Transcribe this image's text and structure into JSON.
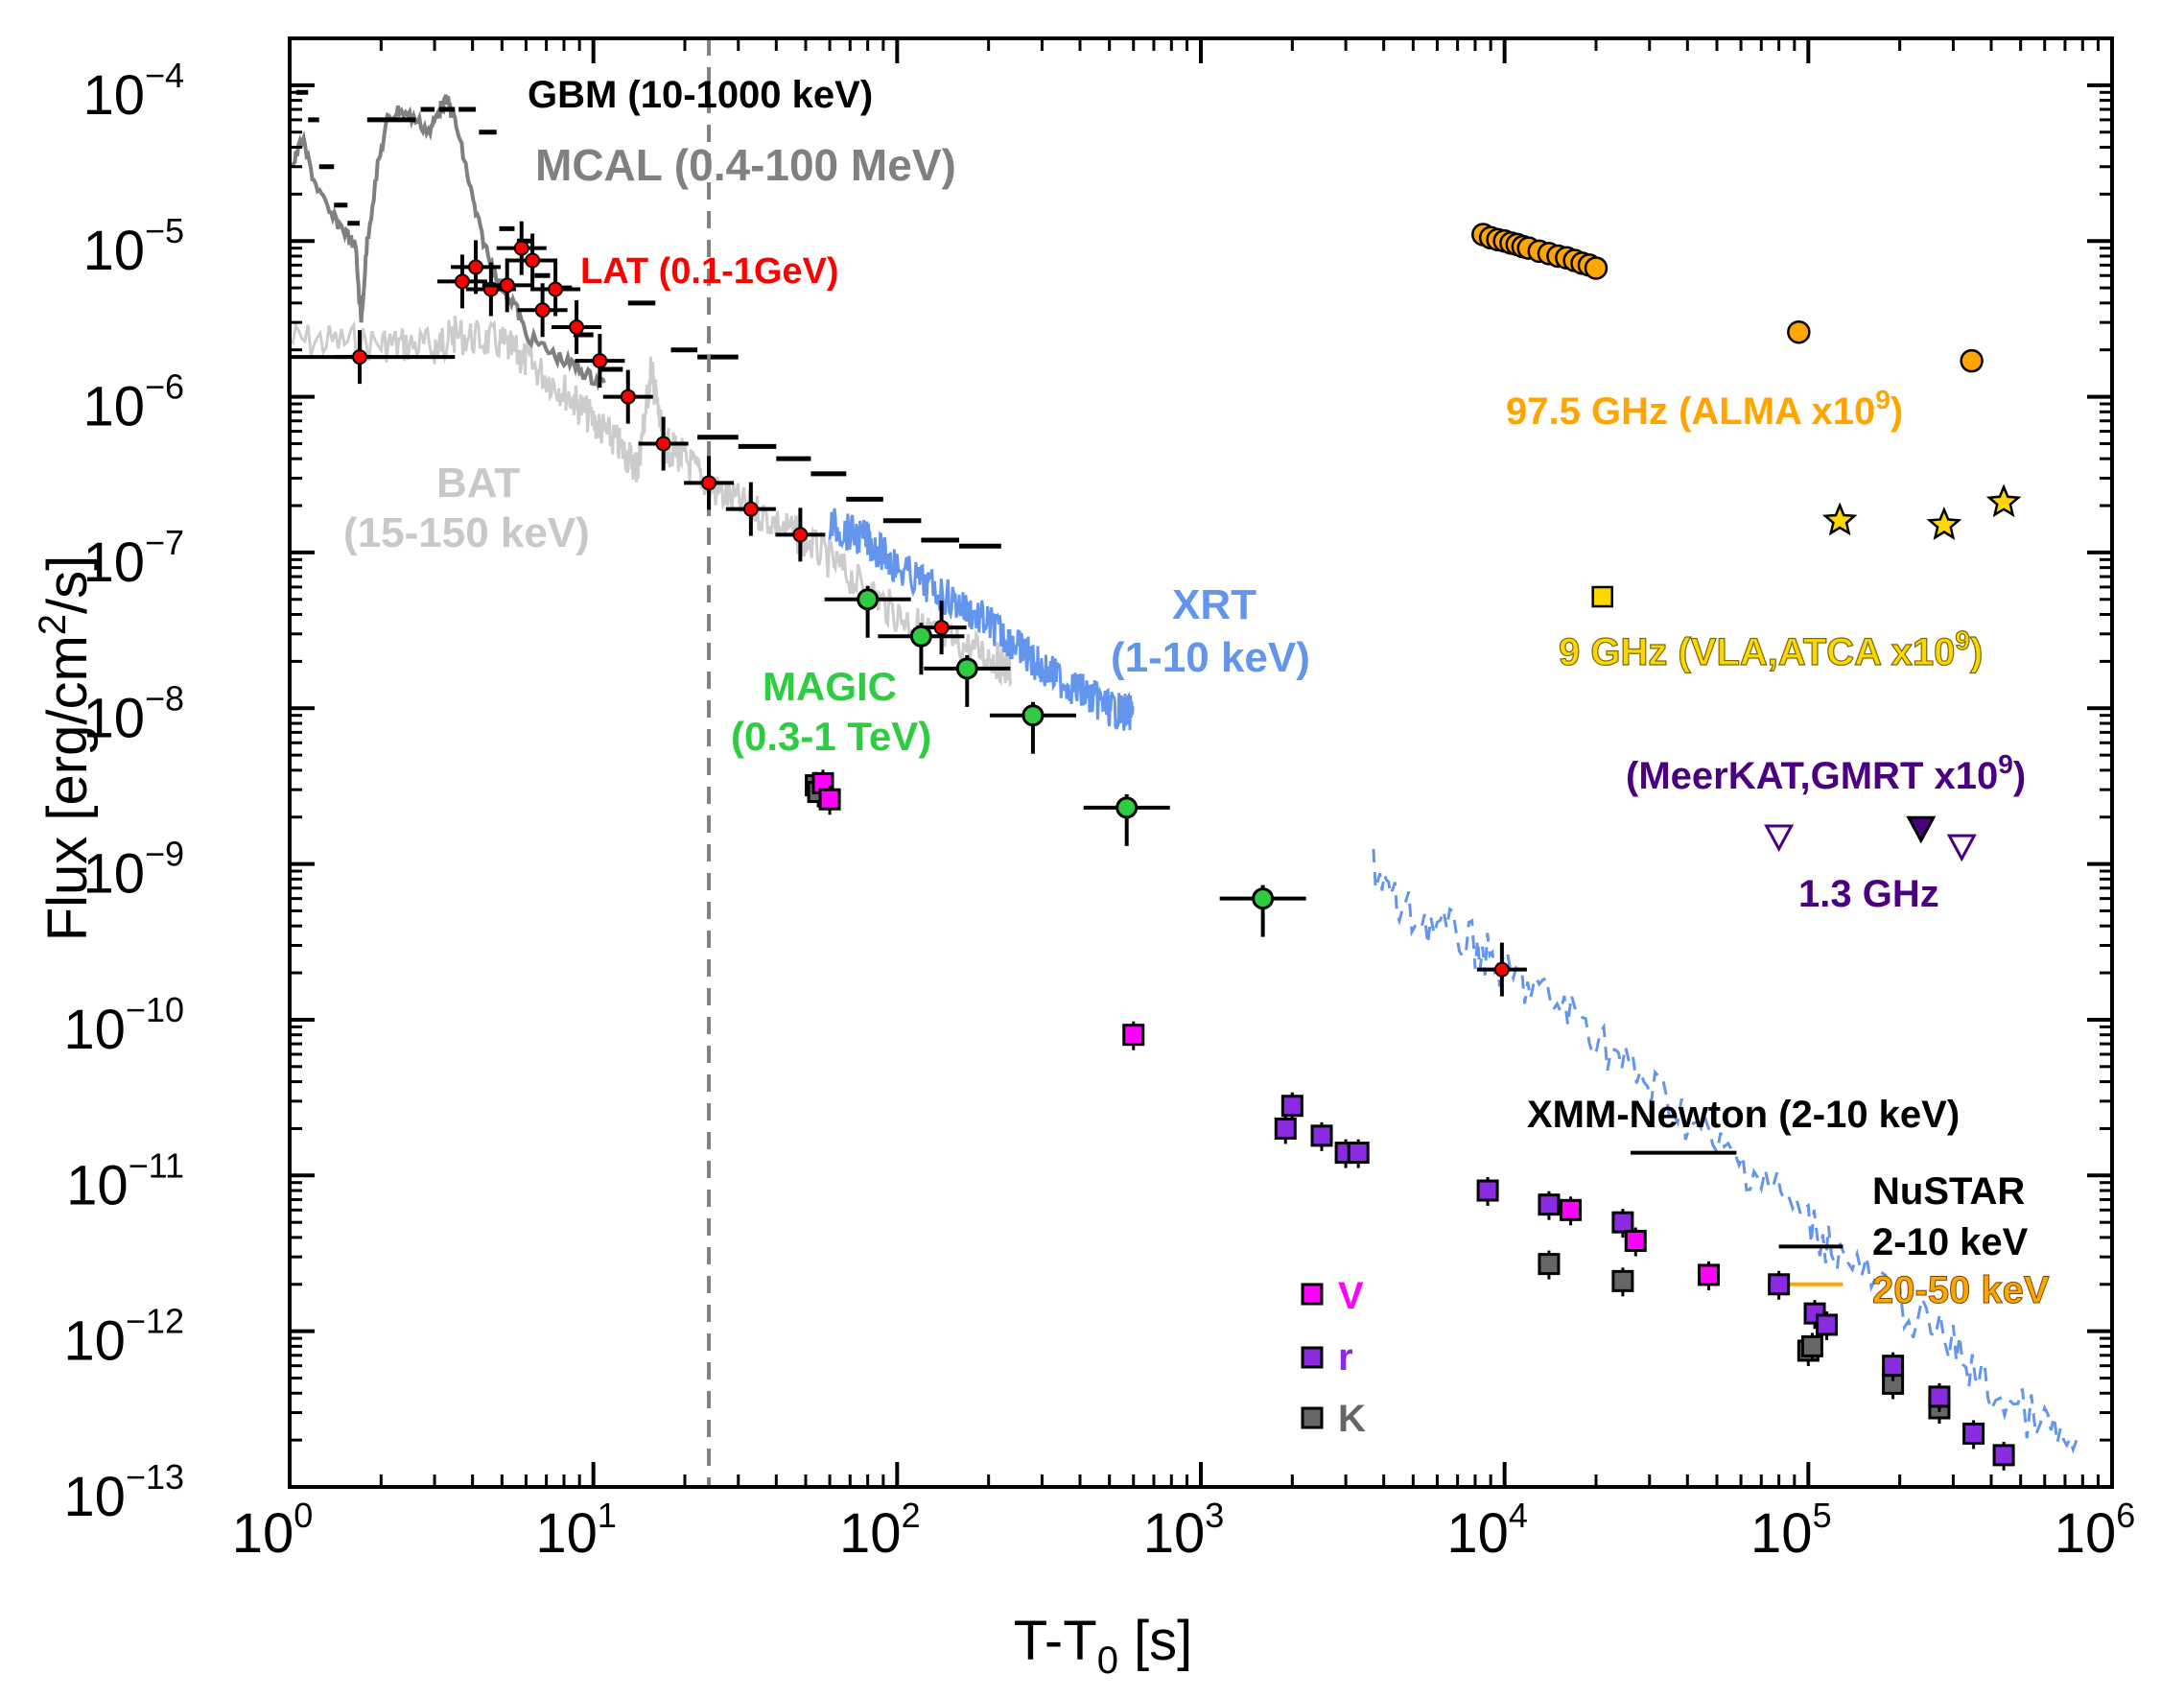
{
  "chart_data": {
    "type": "scatter",
    "xscale": "log",
    "yscale": "log",
    "xlim": [
      1,
      1000000
    ],
    "ylim": [
      1e-13,
      0.0002
    ],
    "xlabel": "T-T0 [s]",
    "ylabel": "Flux [erg/cm2/s]",
    "xticks": [
      {
        "value": 1,
        "base": "10",
        "exp": "0"
      },
      {
        "value": 10,
        "base": "10",
        "exp": "1"
      },
      {
        "value": 100,
        "base": "10",
        "exp": "2"
      },
      {
        "value": 1000,
        "base": "10",
        "exp": "3"
      },
      {
        "value": 10000,
        "base": "10",
        "exp": "4"
      },
      {
        "value": 100000,
        "base": "10",
        "exp": "5"
      },
      {
        "value": 1000000,
        "base": "10",
        "exp": "6"
      }
    ],
    "yticks": [
      {
        "value": 0.0001,
        "base": "10",
        "exp": "−4"
      },
      {
        "value": 1e-05,
        "base": "10",
        "exp": "−5"
      },
      {
        "value": 1e-06,
        "base": "10",
        "exp": "−6"
      },
      {
        "value": 1e-07,
        "base": "10",
        "exp": "−7"
      },
      {
        "value": 1e-08,
        "base": "10",
        "exp": "−8"
      },
      {
        "value": 1e-09,
        "base": "10",
        "exp": "−9"
      },
      {
        "value": 1e-10,
        "base": "10",
        "exp": "−10"
      },
      {
        "value": 1e-11,
        "base": "10",
        "exp": "−11"
      },
      {
        "value": 1e-12,
        "base": "10",
        "exp": "−12"
      },
      {
        "value": 1e-13,
        "base": "10",
        "exp": "−13"
      }
    ],
    "vline_x": 24,
    "colors": {
      "gbm": "#000000",
      "mcal": "#808080",
      "bat": "#cccccc",
      "lat": "#ff0000",
      "xrt": "#6495ed",
      "magic": "#2ecc40",
      "alma": "#ffa500",
      "vla": "#ffd700",
      "meerkat": "#4b0082",
      "v": "#ff00ff",
      "r": "#8a2be2",
      "k": "#666666",
      "nustar_hi": "#ffa500",
      "vline": "#808080"
    },
    "series": [
      {
        "name": "GBM (10-1000 keV)",
        "kind": "segments",
        "values": [
          [
            1.05,
            1.15,
            9e-05
          ],
          [
            1.15,
            1.25,
            6e-05
          ],
          [
            1.25,
            1.4,
            3e-05
          ],
          [
            1.4,
            1.55,
            1.7e-05
          ],
          [
            1.55,
            1.7,
            1.3e-05
          ],
          [
            1.8,
            2.3,
            6e-05
          ],
          [
            2.3,
            2.6,
            6e-05
          ],
          [
            2.7,
            3.0,
            7e-05
          ],
          [
            3.1,
            3.5,
            7e-05
          ],
          [
            3.6,
            4.1,
            7e-05
          ],
          [
            4.2,
            4.8,
            5e-05
          ],
          [
            4.9,
            5.5,
            1.2e-05
          ],
          [
            5.6,
            6.3,
            1e-05
          ],
          [
            6.4,
            7.2,
            6e-06
          ],
          [
            7.3,
            8.5,
            5e-06
          ],
          [
            8.6,
            10,
            2.5e-06
          ],
          [
            10.5,
            12.5,
            1.5e-06
          ],
          [
            13,
            16,
            4e-06
          ],
          [
            18,
            22,
            2e-06
          ],
          [
            22,
            30,
            1.8e-06
          ],
          [
            22,
            30,
            5.5e-07
          ],
          [
            30,
            40,
            4.8e-07
          ],
          [
            40,
            52,
            4e-07
          ],
          [
            52,
            68,
            3.2e-07
          ],
          [
            68,
            90,
            2.2e-07
          ],
          [
            90,
            120,
            1.6e-07
          ],
          [
            120,
            160,
            1.2e-07
          ],
          [
            160,
            220,
            1.1e-07
          ]
        ]
      },
      {
        "name": "MCAL (0.4-100 MeV)",
        "kind": "line",
        "values": [
          [
            1.02,
            3e-05
          ],
          [
            1.1,
            4.5e-05
          ],
          [
            1.2,
            2.5e-05
          ],
          [
            1.35,
            1.5e-05
          ],
          [
            1.5,
            1.2e-05
          ],
          [
            1.65,
            9e-06
          ],
          [
            1.72,
            3e-06
          ],
          [
            1.8,
            1e-05
          ],
          [
            1.95,
            3e-05
          ],
          [
            2.1,
            6e-05
          ],
          [
            2.3,
            7e-05
          ],
          [
            2.6,
            6e-05
          ],
          [
            2.9,
            5e-05
          ],
          [
            3.1,
            7e-05
          ],
          [
            3.3,
            8e-05
          ],
          [
            3.5,
            6e-05
          ],
          [
            3.8,
            3e-05
          ],
          [
            4.1,
            1.5e-05
          ],
          [
            4.5,
            8e-06
          ],
          [
            5.0,
            5e-06
          ],
          [
            5.5,
            4e-06
          ],
          [
            6.0,
            2.5e-06
          ],
          [
            7.0,
            2e-06
          ],
          [
            8.0,
            1.7e-06
          ],
          [
            9.0,
            1.5e-06
          ],
          [
            10,
            1.3e-06
          ],
          [
            11,
            1.2e-06
          ]
        ]
      },
      {
        "name": "BAT (15-150 keV)",
        "kind": "line",
        "values": [
          [
            1,
            2.3e-06
          ],
          [
            2,
            2.2e-06
          ],
          [
            3,
            2.1e-06
          ],
          [
            3.5,
            2.5e-06
          ],
          [
            5,
            2.2e-06
          ],
          [
            6,
            1.7e-06
          ],
          [
            8,
            1.1e-06
          ],
          [
            10,
            7e-07
          ],
          [
            12,
            5e-07
          ],
          [
            14,
            3.5e-07
          ],
          [
            15.5,
            1.5e-06
          ],
          [
            17,
            5e-07
          ],
          [
            20,
            4e-07
          ],
          [
            25,
            2.5e-07
          ],
          [
            35,
            1.8e-07
          ],
          [
            50,
            1.2e-07
          ],
          [
            70,
            7e-08
          ],
          [
            100,
            4e-08
          ],
          [
            140,
            2.8e-08
          ],
          [
            200,
            2.2e-08
          ],
          [
            240,
            1.7e-08
          ]
        ]
      },
      {
        "name": "LAT (0.1-1GeV)",
        "kind": "points",
        "marker": "diamond",
        "values": [
          {
            "x": 1.7,
            "y": 1.8e-06,
            "xlo": 1,
            "xhi": 3.5
          },
          {
            "x": 3.7,
            "y": 5.5e-06
          },
          {
            "x": 4.1,
            "y": 6.8e-06
          },
          {
            "x": 4.6,
            "y": 4.9e-06
          },
          {
            "x": 5.2,
            "y": 5.2e-06
          },
          {
            "x": 5.8,
            "y": 9e-06
          },
          {
            "x": 6.3,
            "y": 7.5e-06
          },
          {
            "x": 6.8,
            "y": 3.6e-06
          },
          {
            "x": 7.5,
            "y": 4.9e-06
          },
          {
            "x": 8.8,
            "y": 2.8e-06
          },
          {
            "x": 10.5,
            "y": 1.7e-06
          },
          {
            "x": 13,
            "y": 1e-06
          },
          {
            "x": 17,
            "y": 5e-07
          },
          {
            "x": 24,
            "y": 2.8e-07
          },
          {
            "x": 33,
            "y": 1.9e-07
          },
          {
            "x": 48,
            "y": 1.3e-07
          },
          {
            "x": 140,
            "y": 3.3e-08
          },
          {
            "x": 9800,
            "y": 2.1e-10
          }
        ]
      },
      {
        "name": "XRT (1-10 keV)",
        "kind": "line",
        "values": [
          [
            60,
            1.5e-07
          ],
          [
            80,
            1.2e-07
          ],
          [
            100,
            8e-08
          ],
          [
            150,
            5e-08
          ],
          [
            200,
            3.5e-08
          ],
          [
            250,
            2.5e-08
          ],
          [
            300,
            1.8e-08
          ],
          [
            400,
            1.3e-08
          ],
          [
            500,
            1e-08
          ],
          [
            600,
            9e-09
          ]
        ]
      },
      {
        "name": "XRT late",
        "kind": "line",
        "values": [
          [
            3700,
            1e-09
          ],
          [
            4500,
            5e-10
          ],
          [
            6000,
            4e-10
          ],
          [
            8000,
            3e-10
          ],
          [
            10000,
            2e-10
          ],
          [
            13000,
            1.5e-10
          ],
          [
            18000,
            1e-10
          ],
          [
            25000,
            5e-11
          ],
          [
            35000,
            3e-11
          ],
          [
            50000,
            1.5e-11
          ],
          [
            70000,
            1e-11
          ],
          [
            100000,
            5e-12
          ],
          [
            130000,
            3e-12
          ],
          [
            200000,
            1.5e-12
          ],
          [
            300000,
            8e-13
          ],
          [
            400000,
            4e-13
          ],
          [
            600000,
            2.5e-13
          ],
          [
            800000,
            1.5e-13
          ]
        ]
      },
      {
        "name": "MAGIC (0.3-1 TeV)",
        "kind": "points",
        "marker": "circle",
        "values": [
          {
            "x": 80,
            "y": 5e-08
          },
          {
            "x": 120,
            "y": 2.9e-08
          },
          {
            "x": 170,
            "y": 1.8e-08
          },
          {
            "x": 280,
            "y": 9e-09
          },
          {
            "x": 570,
            "y": 2.3e-09
          },
          {
            "x": 1600,
            "y": 6e-10
          }
        ]
      },
      {
        "name": "97.5 GHz (ALMA x10^9)",
        "kind": "points",
        "marker": "circle",
        "values": [
          {
            "x": 8500,
            "y": 1.1e-05
          },
          {
            "x": 9000,
            "y": 1.05e-05
          },
          {
            "x": 9500,
            "y": 1.02e-05
          },
          {
            "x": 10000,
            "y": 1e-05
          },
          {
            "x": 10500,
            "y": 9.7e-06
          },
          {
            "x": 11000,
            "y": 9.5e-06
          },
          {
            "x": 11500,
            "y": 9.2e-06
          },
          {
            "x": 12000,
            "y": 9e-06
          },
          {
            "x": 13000,
            "y": 8.6e-06
          },
          {
            "x": 14000,
            "y": 8.3e-06
          },
          {
            "x": 15000,
            "y": 8e-06
          },
          {
            "x": 16000,
            "y": 7.8e-06
          },
          {
            "x": 17000,
            "y": 7.5e-06
          },
          {
            "x": 18000,
            "y": 7.2e-06
          },
          {
            "x": 19000,
            "y": 7e-06
          },
          {
            "x": 20000,
            "y": 6.7e-06
          },
          {
            "x": 93000,
            "y": 2.6e-06
          },
          {
            "x": 345000,
            "y": 1.7e-06
          }
        ]
      },
      {
        "name": "9 GHz (VLA,ATCA x10^9)",
        "kind": "points",
        "marker": "square/star",
        "values": [
          {
            "x": 21000,
            "y": 5.2e-08,
            "marker": "square"
          },
          {
            "x": 127000,
            "y": 1.6e-07
          },
          {
            "x": 280000,
            "y": 1.5e-07
          },
          {
            "x": 440000,
            "y": 2.1e-07
          }
        ]
      },
      {
        "name": "1.3 GHz (MeerKAT,GMRT x10^9)",
        "kind": "points",
        "marker": "triangle",
        "values": [
          {
            "x": 80000,
            "y": 1.5e-09,
            "upper_limit": true
          },
          {
            "x": 235000,
            "y": 1.7e-09
          },
          {
            "x": 320000,
            "y": 1.3e-09,
            "upper_limit": true
          }
        ]
      },
      {
        "name": "V",
        "kind": "points",
        "marker": "square",
        "values": [
          {
            "x": 57,
            "y": 3.3e-09
          },
          {
            "x": 60,
            "y": 2.6e-09
          },
          {
            "x": 600,
            "y": 8e-11
          },
          {
            "x": 16500,
            "y": 6e-12
          },
          {
            "x": 27000,
            "y": 3.8e-12
          },
          {
            "x": 47000,
            "y": 2.3e-12
          }
        ]
      },
      {
        "name": "r",
        "kind": "points",
        "marker": "square",
        "values": [
          {
            "x": 2000,
            "y": 2.8e-11
          },
          {
            "x": 1900,
            "y": 2e-11
          },
          {
            "x": 2500,
            "y": 1.8e-11
          },
          {
            "x": 3000,
            "y": 1.4e-11
          },
          {
            "x": 3300,
            "y": 1.4e-11
          },
          {
            "x": 8800,
            "y": 8e-12
          },
          {
            "x": 14000,
            "y": 6.5e-12
          },
          {
            "x": 24500,
            "y": 5e-12
          },
          {
            "x": 80000,
            "y": 2e-12
          },
          {
            "x": 105000,
            "y": 1.3e-12
          },
          {
            "x": 115000,
            "y": 1.1e-12
          },
          {
            "x": 190000,
            "y": 6e-13
          },
          {
            "x": 270000,
            "y": 3.8e-13
          },
          {
            "x": 350000,
            "y": 2.2e-13
          },
          {
            "x": 440000,
            "y": 1.6e-13
          }
        ]
      },
      {
        "name": "K",
        "kind": "points",
        "marker": "square",
        "values": [
          {
            "x": 54,
            "y": 3.2e-09
          },
          {
            "x": 55,
            "y": 2.9e-09
          },
          {
            "x": 14000,
            "y": 2.7e-12
          },
          {
            "x": 24500,
            "y": 2.1e-12
          },
          {
            "x": 100000,
            "y": 7.5e-13
          },
          {
            "x": 103000,
            "y": 8e-13
          },
          {
            "x": 190000,
            "y": 4.6e-13
          },
          {
            "x": 270000,
            "y": 3.2e-13
          }
        ]
      },
      {
        "name": "XMM-Newton (2-10 keV)",
        "kind": "points",
        "values": [
          {
            "x": 38000,
            "y": 1.4e-11,
            "xlo": 26000,
            "xhi": 58000
          }
        ]
      },
      {
        "name": "NuSTAR 2-10 keV",
        "kind": "points",
        "values": [
          {
            "x": 110000,
            "y": 3.5e-12,
            "xlo": 80000,
            "xhi": 130000
          }
        ]
      },
      {
        "name": "NuSTAR 20-50 keV",
        "kind": "points",
        "values": [
          {
            "x": 110000,
            "y": 2e-12,
            "xlo": 85000,
            "xhi": 130000
          }
        ]
      }
    ],
    "annotations": {
      "gbm": "GBM (10-1000 keV)",
      "mcal": "MCAL (0.4-100 MeV)",
      "lat": "LAT (0.1-1GeV)",
      "bat1": "BAT",
      "bat2": "(15-150 keV)",
      "xrt1": "XRT",
      "xrt2": "(1-10 keV)",
      "magic1": "MAGIC",
      "magic2": "(0.3-1 TeV)",
      "alma": "97.5 GHz (ALMA x10",
      "alma_sup": "9",
      "alma_end": ")",
      "vla": "9 GHz (VLA,ATCA x10",
      "vla_sup": "9",
      "vla_end": ")",
      "meer": "(MeerKAT,GMRT x10",
      "meer_sup": "9",
      "meer_end": ")",
      "ghz13": "1.3 GHz",
      "xmm": "XMM-Newton (2-10 keV)",
      "nustar1": "NuSTAR",
      "nustar2": "2-10 keV",
      "nustar3": "20-50 keV",
      "leg_v": "V",
      "leg_r": "r",
      "leg_k": "K"
    },
    "axis_text": {
      "ylabel_main": "Flux [erg/cm",
      "ylabel_sup": "2",
      "ylabel_end": "/s]",
      "xlabel_main": "T-T",
      "xlabel_sub": "0",
      "xlabel_end": " [s]"
    }
  }
}
